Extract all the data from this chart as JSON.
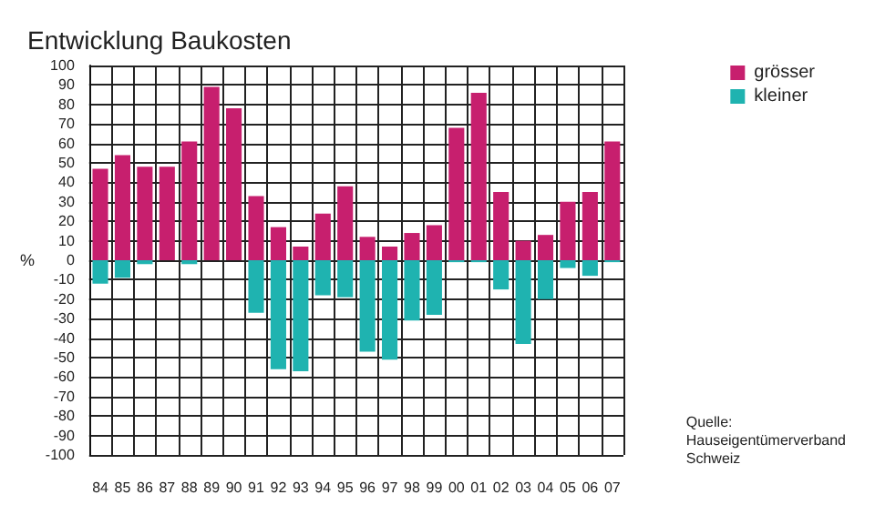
{
  "chart_data": {
    "type": "bar",
    "title": "Entwicklung Baukosten",
    "ylabel": "%",
    "categories": [
      "84",
      "85",
      "86",
      "87",
      "88",
      "89",
      "90",
      "91",
      "92",
      "93",
      "94",
      "95",
      "96",
      "97",
      "98",
      "99",
      "00",
      "01",
      "02",
      "03",
      "04",
      "05",
      "06",
      "07"
    ],
    "series": [
      {
        "name": "grösser",
        "color": "#c71f6e",
        "values": [
          47,
          54,
          48,
          48,
          61,
          89,
          78,
          33,
          17,
          7,
          24,
          38,
          12,
          7,
          14,
          18,
          68,
          86,
          35,
          10,
          13,
          30,
          35,
          61
        ]
      },
      {
        "name": "kleiner",
        "color": "#1fb3b0",
        "values": [
          -12,
          -9,
          -2,
          0,
          -2,
          0,
          0,
          -27,
          -56,
          -57,
          -18,
          -19,
          -47,
          -51,
          -31,
          -28,
          -1,
          -1,
          -15,
          -43,
          -20,
          -4,
          -8,
          -1
        ]
      }
    ],
    "stacked": true,
    "ylim": [
      -100,
      100
    ],
    "yticks": [
      -100,
      -90,
      -80,
      -70,
      -60,
      -50,
      -40,
      -30,
      -20,
      -10,
      0,
      10,
      20,
      30,
      40,
      50,
      60,
      70,
      80,
      90,
      100
    ],
    "grid": true,
    "legend": "top right",
    "annotations": [
      "Quelle:\nHauseigentümerverband\nSchweiz"
    ]
  }
}
